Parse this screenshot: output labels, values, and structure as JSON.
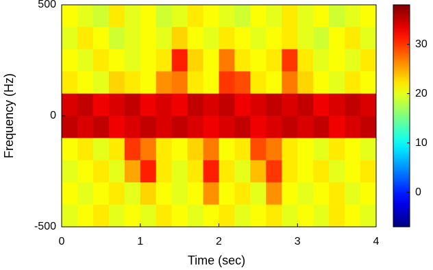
{
  "chart_data": {
    "type": "heatmap",
    "xlabel": "Time (sec)",
    "ylabel": "Frequency (Hz)",
    "x": [
      0.1,
      0.3,
      0.5,
      0.7,
      0.9,
      1.1,
      1.3,
      1.5,
      1.7,
      1.9,
      2.1,
      2.3,
      2.5,
      2.7,
      2.9,
      3.1,
      3.3,
      3.5,
      3.7,
      3.9
    ],
    "y": [
      450,
      350,
      250,
      150,
      50,
      -50,
      -150,
      -250,
      -350,
      -450
    ],
    "z": [
      [
        21,
        20,
        19,
        22,
        20,
        21,
        19,
        20,
        22,
        21,
        20,
        19,
        21,
        20,
        22,
        20,
        21,
        19,
        20,
        21
      ],
      [
        20,
        22,
        21,
        19,
        20,
        21,
        20,
        23,
        21,
        20,
        22,
        21,
        20,
        21,
        22,
        20,
        19,
        21,
        22,
        20
      ],
      [
        21,
        20,
        22,
        21,
        20,
        21,
        22,
        31,
        23,
        21,
        27,
        22,
        21,
        22,
        30,
        22,
        20,
        21,
        20,
        22
      ],
      [
        22,
        21,
        20,
        23,
        22,
        21,
        26,
        27,
        22,
        21,
        30,
        29,
        22,
        21,
        27,
        23,
        21,
        20,
        22,
        21
      ],
      [
        34,
        35,
        33,
        34,
        35,
        33,
        34,
        33,
        35,
        34,
        35,
        33,
        34,
        35,
        34,
        35,
        33,
        34,
        35,
        34
      ],
      [
        35,
        34,
        35,
        33,
        34,
        35,
        34,
        35,
        34,
        33,
        34,
        35,
        33,
        34,
        35,
        34,
        35,
        33,
        34,
        35
      ],
      [
        21,
        22,
        20,
        22,
        30,
        27,
        22,
        21,
        23,
        27,
        21,
        22,
        29,
        27,
        22,
        21,
        20,
        22,
        21,
        20
      ],
      [
        20,
        21,
        22,
        20,
        25,
        31,
        22,
        20,
        22,
        31,
        22,
        20,
        24,
        30,
        22,
        21,
        22,
        20,
        21,
        22
      ],
      [
        21,
        20,
        21,
        22,
        20,
        23,
        21,
        20,
        21,
        26,
        21,
        22,
        20,
        26,
        21,
        20,
        21,
        22,
        20,
        21
      ],
      [
        20,
        21,
        22,
        20,
        21,
        20,
        22,
        21,
        20,
        21,
        22,
        20,
        21,
        22,
        20,
        21,
        20,
        22,
        21,
        20
      ]
    ],
    "xlim": [
      0,
      4
    ],
    "xticks": [
      0,
      1,
      2,
      3,
      4
    ],
    "ylim": [
      -500,
      500
    ],
    "yticks": [
      -500,
      0,
      500
    ],
    "colormap": "jet",
    "clim": [
      -7,
      38
    ],
    "cticks": [
      0,
      10,
      20,
      30
    ]
  }
}
